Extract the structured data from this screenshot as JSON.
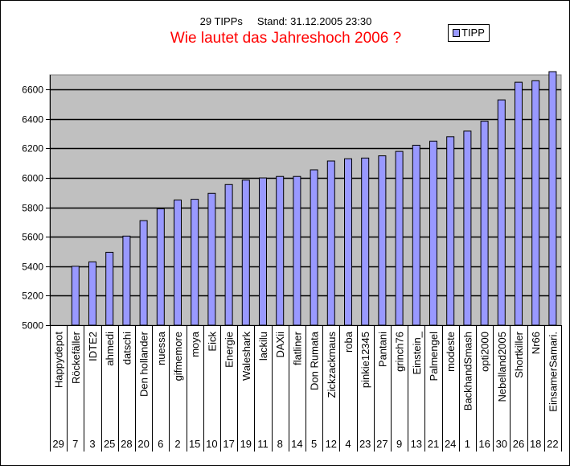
{
  "chart_data": {
    "type": "bar",
    "subtitle": "29 TIPPs     Stand: 31.12.2005 23:30",
    "title": "Wie lautet das Jahreshoch 2006 ?",
    "legend": {
      "position": "top-right",
      "entries": [
        "TIPP"
      ]
    },
    "ylim": [
      5000,
      6700
    ],
    "yticks": [
      5000,
      5200,
      5400,
      5600,
      5800,
      6000,
      6200,
      6400,
      6600
    ],
    "grid": true,
    "colors": {
      "bar": "#9999ff",
      "plot_bg": "#c0c0c0",
      "title": "#ff0000"
    },
    "categories": [
      "Happydepot",
      "Röckefäller",
      "IDTE2",
      "ahmedi",
      "datschi",
      "Den hollander",
      "nuessa",
      "gifmemore",
      "moya",
      "Eick",
      "Energie",
      "Waleshark",
      "lackilu",
      "DAXii",
      "flatliner",
      "Don Rumata",
      "Zickzackmaus",
      "roba",
      "pinkie12345",
      "Pantani",
      "grinch76",
      "Einstein_",
      "Palmengel",
      "modeste",
      "BackhandSmash",
      "opti2000",
      "Nebelland2005",
      "Shortkiller",
      "Nr66",
      "EinsamerSamari."
    ],
    "ranks": [
      "29",
      "7",
      "3",
      "25",
      "28",
      "20",
      "6",
      "2",
      "15",
      "10",
      "17",
      "19",
      "11",
      "8",
      "14",
      "5",
      "12",
      "4",
      "23",
      "27",
      "9",
      "13",
      "21",
      "24",
      "1",
      "16",
      "30",
      "26",
      "18",
      "22"
    ],
    "series": [
      {
        "name": "TIPP",
        "values": [
          null,
          5400,
          5430,
          5495,
          5605,
          5710,
          5790,
          5850,
          5855,
          5895,
          5955,
          5985,
          6000,
          6010,
          6010,
          6055,
          6115,
          6130,
          6135,
          6150,
          6180,
          6222,
          6250,
          6280,
          6318,
          6385,
          6530,
          6650,
          6660,
          6750
        ]
      }
    ]
  }
}
